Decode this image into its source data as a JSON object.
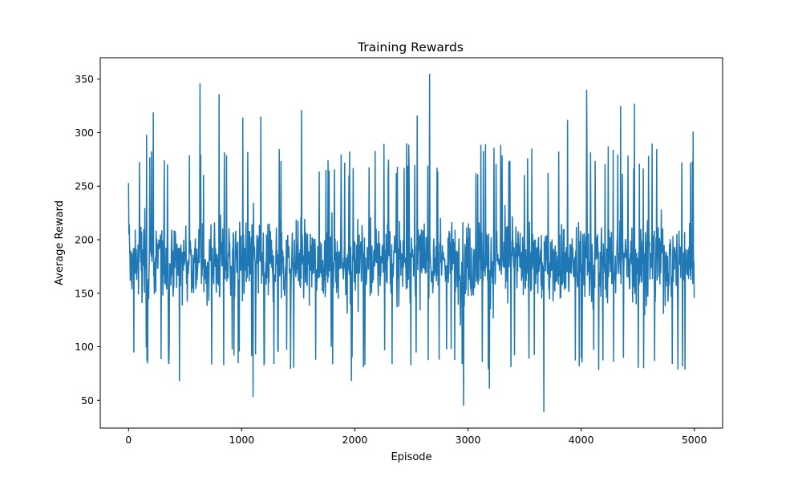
{
  "chart_data": {
    "type": "line",
    "title": "Training Rewards",
    "xlabel": "Episode",
    "ylabel": "Average Reward",
    "xlim": [
      -250,
      5250
    ],
    "ylim": [
      24,
      370
    ],
    "xticks": [
      0,
      1000,
      2000,
      3000,
      4000,
      5000
    ],
    "yticks": [
      50,
      100,
      150,
      200,
      250,
      300,
      350
    ],
    "grid": false,
    "color": "#1f77b4",
    "series_summary": {
      "episodes": 5000,
      "mean": 175,
      "typical_min": 100,
      "typical_max": 260,
      "observed_min": 39,
      "observed_max": 355
    },
    "notable_points": [
      {
        "x": 0,
        "y": 253
      },
      {
        "x": 160,
        "y": 298
      },
      {
        "x": 220,
        "y": 319
      },
      {
        "x": 450,
        "y": 68
      },
      {
        "x": 630,
        "y": 346
      },
      {
        "x": 800,
        "y": 336
      },
      {
        "x": 1010,
        "y": 314
      },
      {
        "x": 1100,
        "y": 53
      },
      {
        "x": 1170,
        "y": 315
      },
      {
        "x": 1530,
        "y": 321
      },
      {
        "x": 1970,
        "y": 68
      },
      {
        "x": 2550,
        "y": 316
      },
      {
        "x": 2660,
        "y": 355
      },
      {
        "x": 2960,
        "y": 45
      },
      {
        "x": 3190,
        "y": 61
      },
      {
        "x": 3670,
        "y": 39
      },
      {
        "x": 3880,
        "y": 312
      },
      {
        "x": 4050,
        "y": 340
      },
      {
        "x": 4350,
        "y": 325
      },
      {
        "x": 4470,
        "y": 327
      },
      {
        "x": 4990,
        "y": 301
      }
    ]
  }
}
